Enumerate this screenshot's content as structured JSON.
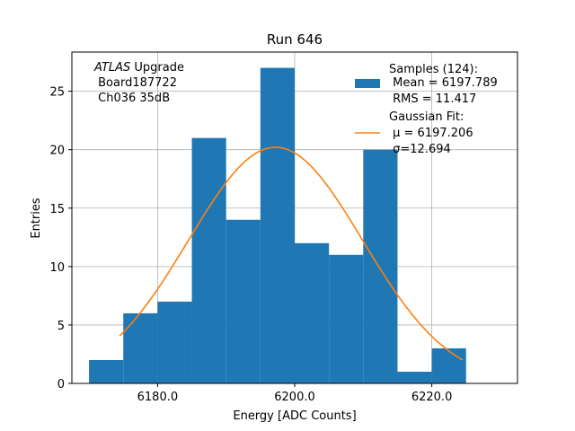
{
  "chart_data": {
    "type": "bar",
    "title": "Run 646",
    "xlabel": "Energy [ADC Counts]",
    "ylabel": "Entries",
    "xlim": [
      6167.5,
      6232.5
    ],
    "ylim": [
      0,
      28.35
    ],
    "grid": true,
    "x_ticks": [
      6180,
      6200,
      6220
    ],
    "x_tick_labels": [
      "6180.0",
      "6200.0",
      "6220.0"
    ],
    "y_ticks": [
      0,
      5,
      10,
      15,
      20,
      25
    ],
    "y_tick_labels": [
      "0",
      "5",
      "10",
      "15",
      "20",
      "25"
    ],
    "bins": [
      {
        "x0": 6170,
        "x1": 6175,
        "count": 2
      },
      {
        "x0": 6175,
        "x1": 6180,
        "count": 6
      },
      {
        "x0": 6180,
        "x1": 6185,
        "count": 7
      },
      {
        "x0": 6185,
        "x1": 6190,
        "count": 21
      },
      {
        "x0": 6190,
        "x1": 6195,
        "count": 14
      },
      {
        "x0": 6195,
        "x1": 6200,
        "count": 27
      },
      {
        "x0": 6200,
        "x1": 6205,
        "count": 12
      },
      {
        "x0": 6205,
        "x1": 6210,
        "count": 11
      },
      {
        "x0": 6210,
        "x1": 6215,
        "count": 20
      },
      {
        "x0": 6215,
        "x1": 6220,
        "count": 1
      },
      {
        "x0": 6220,
        "x1": 6225,
        "count": 3
      }
    ],
    "fit": {
      "mu": 6197.206,
      "sigma": 12.694,
      "amplitude": 20.2,
      "x_range": [
        6174.5,
        6224.5
      ]
    },
    "colors": {
      "histogram": "#1f77b4",
      "fit": "#ff7f0e",
      "grid": "#b0b0b0"
    },
    "annotation": {
      "italic": "ATLAS",
      "line1_rest": " Upgrade",
      "line2": " Board187722",
      "line3": " Ch036 35dB"
    },
    "legend": {
      "placement": "top-right",
      "samples_line1": "Samples (124):",
      "samples_line2": " Mean = 6197.789",
      "samples_line3": " RMS = 11.417",
      "fit_line1": "Gaussian Fit:",
      "fit_line2": " μ = 6197.206",
      "fit_line3": " σ=12.694"
    }
  }
}
